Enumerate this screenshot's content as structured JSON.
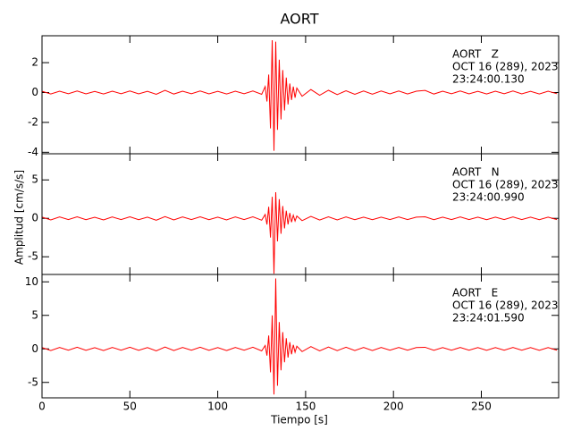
{
  "title": "AORT",
  "xlabel": "Tiempo [s]",
  "ylabel": "Amplitud [cm/s/s]",
  "chart_data": [
    {
      "type": "line",
      "color": "#ff0000",
      "xlim": [
        0,
        294
      ],
      "xticks": [
        0,
        50,
        100,
        150,
        200,
        250
      ],
      "ylim": [
        -4.1,
        3.8
      ],
      "yticks": [
        -4,
        -2,
        0,
        2
      ],
      "annotations": [
        "AORT   Z",
        "OCT 16 (289), 2023",
        "23:24:00.130"
      ],
      "x": [
        0,
        5,
        10,
        15,
        20,
        25,
        30,
        35,
        40,
        45,
        50,
        55,
        60,
        65,
        70,
        75,
        80,
        85,
        90,
        95,
        100,
        105,
        110,
        115,
        120,
        125,
        127,
        128,
        129,
        130,
        131,
        132,
        133,
        134,
        135,
        136,
        137,
        138,
        139,
        140,
        141,
        142,
        143,
        144,
        145,
        148,
        153,
        158,
        163,
        168,
        173,
        178,
        183,
        188,
        193,
        198,
        203,
        208,
        213,
        218,
        223,
        228,
        233,
        238,
        243,
        248,
        253,
        258,
        263,
        268,
        273,
        278,
        283,
        288,
        293
      ],
      "values": [
        0.08,
        -0.1,
        0.09,
        -0.08,
        0.1,
        -0.09,
        0.07,
        -0.1,
        0.09,
        -0.08,
        0.1,
        -0.09,
        0.08,
        -0.12,
        0.15,
        -0.1,
        0.09,
        -0.08,
        0.1,
        -0.09,
        0.08,
        -0.1,
        0.09,
        -0.08,
        0.1,
        -0.12,
        0.4,
        -0.6,
        1.2,
        -2.4,
        3.5,
        -3.9,
        3.4,
        -2.5,
        2.2,
        -1.8,
        1.5,
        -1.2,
        1.0,
        -0.8,
        0.6,
        -0.5,
        0.4,
        -0.35,
        0.3,
        -0.25,
        0.2,
        -0.18,
        0.15,
        -0.14,
        0.12,
        -0.12,
        0.1,
        -0.11,
        0.1,
        -0.09,
        0.1,
        -0.1,
        0.09,
        0.14,
        -0.1,
        0.09,
        -0.08,
        0.1,
        -0.09,
        0.08,
        -0.1,
        0.09,
        -0.08,
        0.1,
        -0.09,
        0.08,
        -0.1,
        0.09,
        -0.08
      ]
    },
    {
      "type": "line",
      "color": "#ff0000",
      "xlim": [
        0,
        294
      ],
      "xticks": [
        0,
        50,
        100,
        150,
        200,
        250
      ],
      "ylim": [
        -7.3,
        8.4
      ],
      "yticks": [
        -5,
        0,
        5
      ],
      "annotations": [
        "AORT   N",
        "OCT 16 (289), 2023",
        "23:24:00.990"
      ],
      "x": [
        0,
        5,
        10,
        15,
        20,
        25,
        30,
        35,
        40,
        45,
        50,
        55,
        60,
        65,
        70,
        75,
        80,
        85,
        90,
        95,
        100,
        105,
        110,
        115,
        120,
        125,
        127,
        128,
        129,
        130,
        131,
        132,
        133,
        134,
        135,
        136,
        137,
        138,
        139,
        140,
        141,
        142,
        143,
        144,
        145,
        148,
        153,
        158,
        163,
        168,
        173,
        178,
        183,
        188,
        193,
        198,
        203,
        208,
        213,
        218,
        223,
        228,
        233,
        238,
        243,
        248,
        253,
        258,
        263,
        268,
        273,
        278,
        283,
        288,
        293
      ],
      "values": [
        0.16,
        -0.2,
        0.18,
        -0.16,
        0.2,
        -0.18,
        0.14,
        -0.2,
        0.18,
        -0.16,
        0.2,
        -0.18,
        0.16,
        -0.24,
        0.22,
        -0.2,
        0.18,
        -0.16,
        0.2,
        -0.18,
        0.16,
        -0.2,
        0.18,
        -0.16,
        0.2,
        -0.24,
        0.5,
        -0.8,
        1.5,
        -2.5,
        2.8,
        -7.2,
        3.4,
        -3.0,
        2.5,
        -2.0,
        1.6,
        -1.3,
        1.0,
        -0.8,
        0.7,
        -0.5,
        0.4,
        -0.35,
        0.3,
        -0.3,
        0.25,
        -0.22,
        0.2,
        -0.2,
        0.18,
        -0.18,
        0.16,
        -0.18,
        0.16,
        -0.16,
        0.18,
        -0.16,
        0.16,
        0.2,
        -0.18,
        0.16,
        -0.16,
        0.18,
        -0.16,
        0.16,
        -0.18,
        0.16,
        -0.16,
        0.18,
        -0.16,
        0.16,
        -0.18,
        0.16,
        -0.16
      ]
    },
    {
      "type": "line",
      "color": "#ff0000",
      "xlim": [
        0,
        294
      ],
      "xticks": [
        0,
        50,
        100,
        150,
        200,
        250
      ],
      "ylim": [
        -7.3,
        11.1
      ],
      "yticks": [
        -5,
        0,
        5,
        10
      ],
      "annotations": [
        "AORT   E",
        "OCT 16 (289), 2023",
        "23:24:01.590"
      ],
      "x": [
        0,
        5,
        10,
        15,
        20,
        25,
        30,
        35,
        40,
        45,
        50,
        55,
        60,
        65,
        70,
        75,
        80,
        85,
        90,
        95,
        100,
        105,
        110,
        115,
        120,
        125,
        127,
        128,
        129,
        130,
        131,
        132,
        133,
        134,
        135,
        136,
        137,
        138,
        139,
        140,
        141,
        142,
        143,
        144,
        145,
        148,
        153,
        158,
        163,
        168,
        173,
        178,
        183,
        188,
        193,
        198,
        203,
        208,
        213,
        218,
        223,
        228,
        233,
        238,
        243,
        248,
        253,
        258,
        263,
        268,
        273,
        278,
        283,
        288,
        293
      ],
      "values": [
        0.2,
        -0.25,
        0.22,
        -0.2,
        0.25,
        -0.22,
        0.18,
        -0.25,
        0.22,
        -0.2,
        0.25,
        -0.22,
        0.2,
        -0.3,
        0.28,
        -0.25,
        0.22,
        -0.2,
        0.25,
        -0.22,
        0.2,
        -0.25,
        0.22,
        -0.2,
        0.25,
        -0.3,
        0.5,
        -1.0,
        2.0,
        -3.5,
        5.0,
        -6.8,
        10.5,
        -5.5,
        4.0,
        -3.2,
        2.5,
        -2.0,
        1.6,
        -1.3,
        1.0,
        -0.8,
        0.6,
        -0.5,
        0.4,
        -0.4,
        0.35,
        -0.3,
        0.28,
        -0.26,
        0.25,
        -0.24,
        0.22,
        -0.24,
        0.22,
        -0.2,
        0.22,
        -0.2,
        0.2,
        0.24,
        -0.22,
        0.2,
        -0.2,
        0.22,
        -0.2,
        0.2,
        -0.22,
        0.2,
        -0.2,
        0.22,
        -0.2,
        0.2,
        -0.22,
        0.2,
        -0.2
      ]
    }
  ]
}
